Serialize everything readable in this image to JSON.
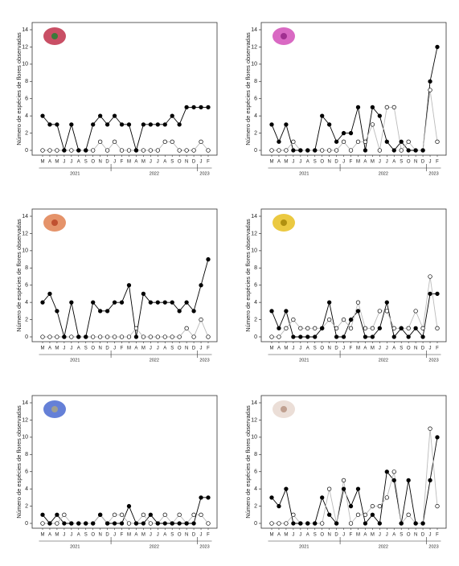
{
  "chart_data": [
    {
      "type": "line",
      "ylabel": "Número de espécies de flores observadas",
      "categories": [
        "M",
        "A",
        "M",
        "J",
        "J",
        "A",
        "S",
        "O",
        "N",
        "D",
        "J",
        "F",
        "M",
        "A",
        "M",
        "J",
        "J",
        "A",
        "S",
        "O",
        "N",
        "D",
        "J",
        "F"
      ],
      "years": [
        "2021",
        "2022",
        "2023"
      ],
      "ylim": [
        0,
        14
      ],
      "yticks": [
        0,
        2,
        4,
        6,
        8,
        10,
        12,
        14
      ],
      "series": [
        {
          "color": "#000000",
          "marker": "filled",
          "values": [
            4,
            3,
            3,
            0,
            3,
            0,
            0,
            3,
            4,
            3,
            4,
            3,
            3,
            0,
            3,
            3,
            3,
            3,
            4,
            3,
            5,
            5,
            5,
            5
          ]
        },
        {
          "color": "#bbbbbb",
          "marker": "open",
          "values": [
            0,
            0,
            0,
            0,
            0,
            0,
            0,
            0,
            1,
            0,
            1,
            0,
            0,
            0,
            0,
            0,
            0,
            1,
            1,
            0,
            0,
            0,
            1,
            0
          ]
        }
      ]
    },
    {
      "type": "line",
      "ylabel": "Número de espécies de flores observadas",
      "categories": [
        "M",
        "A",
        "M",
        "J",
        "J",
        "A",
        "S",
        "O",
        "N",
        "D",
        "J",
        "F",
        "M",
        "A",
        "M",
        "J",
        "J",
        "A",
        "S",
        "O",
        "N",
        "D",
        "J",
        "F"
      ],
      "years": [
        "2021",
        "2022",
        "2023"
      ],
      "ylim": [
        0,
        14
      ],
      "yticks": [
        0,
        2,
        4,
        6,
        8,
        10,
        12,
        14
      ],
      "series": [
        {
          "color": "#000000",
          "marker": "filled",
          "values": [
            3,
            1,
            3,
            0,
            0,
            0,
            0,
            4,
            3,
            1,
            2,
            2,
            5,
            0,
            5,
            4,
            1,
            0,
            1,
            0,
            0,
            0,
            8,
            12
          ]
        },
        {
          "color": "#bbbbbb",
          "marker": "open",
          "values": [
            0,
            0,
            0,
            1,
            0,
            0,
            0,
            0,
            0,
            0,
            1,
            0,
            1,
            1,
            3,
            0,
            5,
            5,
            0,
            1,
            0,
            0,
            7,
            1
          ]
        }
      ]
    },
    {
      "type": "line",
      "ylabel": "Número de espécies de flores observadas",
      "categories": [
        "M",
        "A",
        "M",
        "J",
        "J",
        "A",
        "S",
        "O",
        "N",
        "D",
        "J",
        "F",
        "M",
        "A",
        "M",
        "J",
        "J",
        "A",
        "S",
        "O",
        "N",
        "D",
        "J",
        "F"
      ],
      "years": [
        "2021",
        "2022",
        "2023"
      ],
      "ylim": [
        0,
        14
      ],
      "yticks": [
        0,
        2,
        4,
        6,
        8,
        10,
        12,
        14
      ],
      "series": [
        {
          "color": "#000000",
          "marker": "filled",
          "values": [
            4,
            5,
            3,
            0,
            4,
            0,
            0,
            4,
            3,
            3,
            4,
            4,
            6,
            0,
            5,
            4,
            4,
            4,
            4,
            3,
            4,
            3,
            6,
            9
          ]
        },
        {
          "color": "#bbbbbb",
          "marker": "open",
          "values": [
            0,
            0,
            0,
            0,
            0,
            0,
            0,
            0,
            0,
            0,
            0,
            0,
            0,
            1,
            0,
            0,
            0,
            0,
            0,
            0,
            1,
            0,
            2,
            0
          ]
        }
      ]
    },
    {
      "type": "line",
      "ylabel": "Número de espécies de flores observadas",
      "categories": [
        "M",
        "A",
        "M",
        "J",
        "J",
        "A",
        "S",
        "O",
        "N",
        "D",
        "J",
        "F",
        "M",
        "A",
        "M",
        "J",
        "J",
        "A",
        "S",
        "O",
        "N",
        "D",
        "J",
        "F"
      ],
      "years": [
        "2021",
        "2022",
        "2023"
      ],
      "ylim": [
        0,
        14
      ],
      "yticks": [
        0,
        2,
        4,
        6,
        8,
        10,
        12,
        14
      ],
      "series": [
        {
          "color": "#000000",
          "marker": "filled",
          "values": [
            3,
            1,
            3,
            0,
            0,
            0,
            0,
            1,
            4,
            0,
            0,
            2,
            3,
            0,
            0,
            1,
            4,
            0,
            1,
            0,
            1,
            0,
            5,
            5
          ]
        },
        {
          "color": "#bbbbbb",
          "marker": "open",
          "values": [
            0,
            0,
            1,
            2,
            1,
            1,
            1,
            1,
            2,
            1,
            2,
            1,
            4,
            1,
            1,
            3,
            3,
            1,
            1,
            1,
            3,
            1,
            7,
            1
          ]
        }
      ]
    },
    {
      "type": "line",
      "ylabel": "Número de espécies de flores observadas",
      "categories": [
        "M",
        "A",
        "M",
        "J",
        "J",
        "A",
        "S",
        "O",
        "N",
        "D",
        "J",
        "F",
        "M",
        "A",
        "M",
        "J",
        "J",
        "A",
        "S",
        "O",
        "N",
        "D",
        "J",
        "F"
      ],
      "years": [
        "2021",
        "2022",
        "2023"
      ],
      "ylim": [
        0,
        14
      ],
      "yticks": [
        0,
        2,
        4,
        6,
        8,
        10,
        12,
        14
      ],
      "series": [
        {
          "color": "#000000",
          "marker": "filled",
          "values": [
            1,
            0,
            1,
            0,
            0,
            0,
            0,
            0,
            1,
            0,
            0,
            0,
            2,
            0,
            0,
            1,
            0,
            0,
            0,
            0,
            0,
            0,
            3,
            3
          ]
        },
        {
          "color": "#bbbbbb",
          "marker": "open",
          "values": [
            0,
            0,
            0,
            1,
            0,
            0,
            0,
            0,
            1,
            0,
            1,
            1,
            0,
            0,
            1,
            0,
            0,
            1,
            0,
            1,
            0,
            1,
            1,
            0
          ]
        }
      ]
    },
    {
      "type": "line",
      "ylabel": "Número de espécies de flores observadas",
      "categories": [
        "M",
        "A",
        "M",
        "J",
        "J",
        "A",
        "S",
        "O",
        "N",
        "D",
        "J",
        "F",
        "M",
        "A",
        "M",
        "J",
        "J",
        "A",
        "S",
        "O",
        "N",
        "D",
        "J",
        "F"
      ],
      "years": [
        "2021",
        "2022",
        "2023"
      ],
      "ylim": [
        0,
        14
      ],
      "yticks": [
        0,
        2,
        4,
        6,
        8,
        10,
        12,
        14
      ],
      "series": [
        {
          "color": "#000000",
          "marker": "filled",
          "values": [
            3,
            2,
            4,
            0,
            0,
            0,
            0,
            3,
            1,
            0,
            4,
            2,
            4,
            0,
            1,
            0,
            6,
            5,
            0,
            5,
            0,
            0,
            5,
            10
          ]
        },
        {
          "color": "#bbbbbb",
          "marker": "open",
          "values": [
            0,
            0,
            0,
            1,
            0,
            0,
            0,
            0,
            4,
            0,
            5,
            0,
            1,
            1,
            2,
            2,
            3,
            6,
            0,
            1,
            0,
            0,
            11,
            2
          ]
        }
      ]
    }
  ]
}
